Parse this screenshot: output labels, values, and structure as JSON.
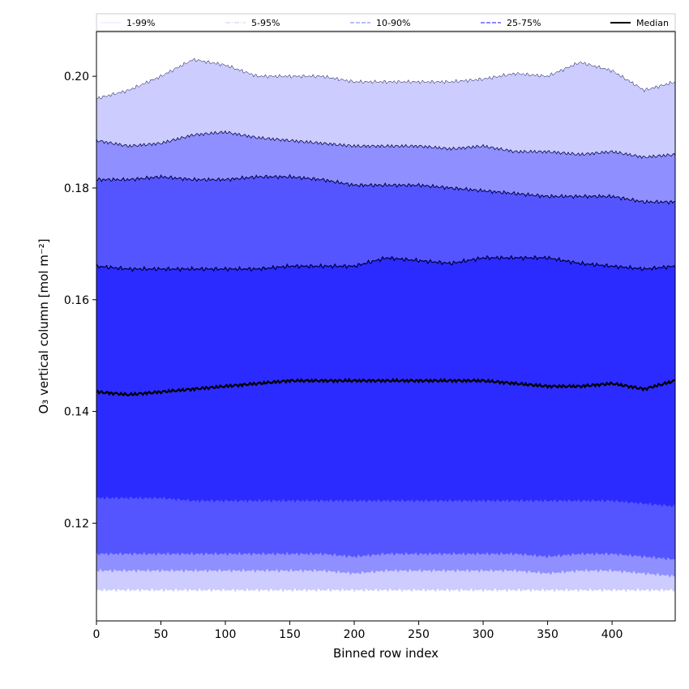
{
  "chart_data": {
    "type": "area",
    "xlabel": "Binned row index",
    "ylabel": "O₃ vertical column [mol m⁻²]",
    "xlim": [
      0,
      449
    ],
    "ylim": [
      0.1025,
      0.208
    ],
    "xticks": [
      0,
      50,
      100,
      150,
      200,
      250,
      300,
      350,
      400
    ],
    "xtick_labels": [
      "0",
      "50",
      "100",
      "150",
      "200",
      "250",
      "300",
      "350",
      "400"
    ],
    "yticks": [
      0.12,
      0.14,
      0.16,
      0.18,
      0.2
    ],
    "ytick_labels": [
      "0.12",
      "0.14",
      "0.16",
      "0.18",
      "0.20"
    ],
    "grid": false,
    "legend_position": "top",
    "x": [
      0,
      25,
      50,
      75,
      100,
      125,
      150,
      175,
      200,
      225,
      250,
      275,
      300,
      325,
      350,
      375,
      400,
      425,
      449
    ],
    "bands": [
      {
        "name": "1-99%",
        "color": "#ccccff",
        "lower": [
          0.108,
          0.108,
          0.108,
          0.108,
          0.108,
          0.108,
          0.108,
          0.108,
          0.108,
          0.108,
          0.108,
          0.108,
          0.108,
          0.108,
          0.108,
          0.108,
          0.108,
          0.108,
          0.108
        ],
        "upper": [
          0.196,
          0.1975,
          0.2,
          0.203,
          0.202,
          0.2,
          0.2,
          0.2,
          0.199,
          0.199,
          0.199,
          0.199,
          0.1995,
          0.2005,
          0.2,
          0.2025,
          0.201,
          0.1975,
          0.199
        ]
      },
      {
        "name": "5-95%",
        "color": "#8f8fff",
        "lower": [
          0.1115,
          0.1115,
          0.1115,
          0.1115,
          0.1115,
          0.1115,
          0.1115,
          0.1115,
          0.111,
          0.1115,
          0.1115,
          0.1115,
          0.1115,
          0.1115,
          0.111,
          0.1115,
          0.1115,
          0.111,
          0.1105
        ],
        "upper": [
          0.1885,
          0.1875,
          0.188,
          0.1895,
          0.19,
          0.189,
          0.1885,
          0.188,
          0.1875,
          0.1875,
          0.1875,
          0.187,
          0.1875,
          0.1865,
          0.1865,
          0.186,
          0.1865,
          0.1855,
          0.186
        ]
      },
      {
        "name": "10-90%",
        "color": "#5555ff",
        "lower": [
          0.1145,
          0.1145,
          0.1145,
          0.1145,
          0.1145,
          0.1145,
          0.1145,
          0.1145,
          0.114,
          0.1145,
          0.1145,
          0.1145,
          0.1145,
          0.1145,
          0.114,
          0.1145,
          0.1145,
          0.114,
          0.1135
        ],
        "upper": [
          0.1815,
          0.1815,
          0.182,
          0.1815,
          0.1815,
          0.182,
          0.182,
          0.1815,
          0.1805,
          0.1805,
          0.1805,
          0.18,
          0.1795,
          0.179,
          0.1785,
          0.1785,
          0.1785,
          0.1775,
          0.1775
        ]
      },
      {
        "name": "25-75%",
        "color": "#2b2bff",
        "lower": [
          0.1245,
          0.1245,
          0.1245,
          0.124,
          0.124,
          0.124,
          0.124,
          0.124,
          0.124,
          0.124,
          0.124,
          0.124,
          0.124,
          0.124,
          0.124,
          0.124,
          0.124,
          0.1235,
          0.123
        ],
        "upper": [
          0.166,
          0.1655,
          0.1655,
          0.1655,
          0.1655,
          0.1655,
          0.166,
          0.166,
          0.166,
          0.1675,
          0.167,
          0.1665,
          0.1675,
          0.1675,
          0.1675,
          0.1665,
          0.166,
          0.1655,
          0.166
        ]
      }
    ],
    "median": {
      "name": "Median",
      "color": "#000000",
      "values": [
        0.1435,
        0.143,
        0.1435,
        0.144,
        0.1445,
        0.145,
        0.1455,
        0.1455,
        0.1455,
        0.1455,
        0.1455,
        0.1455,
        0.1455,
        0.145,
        0.1445,
        0.1445,
        0.145,
        0.144,
        0.1455
      ]
    },
    "legend": [
      {
        "label": "1-99%",
        "style": "solid",
        "color": "#ccccff",
        "width": 0.6
      },
      {
        "label": "5-95%",
        "style": "dashdot",
        "color": "#8f8fff",
        "width": 0.6
      },
      {
        "label": "10-90%",
        "style": "dashed",
        "color": "#7777ff",
        "width": 1.0
      },
      {
        "label": "25-75%",
        "style": "dashed",
        "color": "#4444ff",
        "width": 1.3
      },
      {
        "label": "Median",
        "style": "solid",
        "color": "#000000",
        "width": 2.0
      }
    ]
  }
}
